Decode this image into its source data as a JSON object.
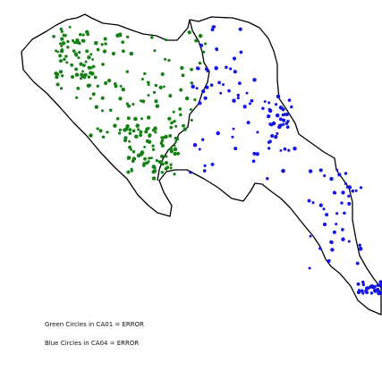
{
  "map": {
    "boundary_stroke": "#000000",
    "land_fill": "#ffffff",
    "regions": [
      {
        "code": "CA01",
        "side": "west",
        "point_color": "#158015",
        "point_count": 560
      },
      {
        "code": "CA04",
        "side": "east",
        "point_color": "#1414e6",
        "point_count": 300
      }
    ]
  },
  "legend": {
    "green_text": "Green Circles in CA01 = ERROR",
    "blue_text": "Blue Circles in CA04 = ERROR"
  },
  "colors": {
    "green": "#158015",
    "blue": "#1414e6",
    "text": "#111111"
  }
}
